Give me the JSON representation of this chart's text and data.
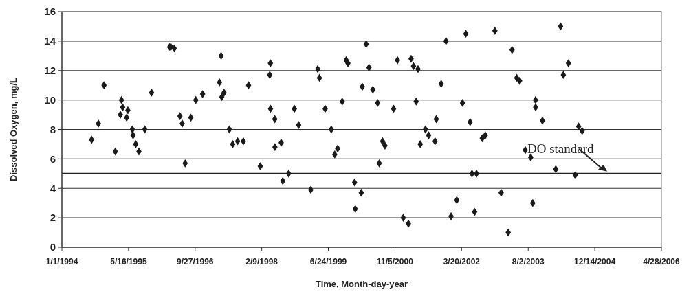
{
  "chart_data": {
    "type": "scatter",
    "xlabel": "Time, Month-day-year",
    "ylabel": "Dissolved Oxygen, mg/L",
    "xlim": [
      "1994-01-01",
      "2006-04-28"
    ],
    "xticks": [
      {
        "value": "1994-01-01",
        "label": "1/1/1994"
      },
      {
        "value": "1995-05-16",
        "label": "5/16/1995"
      },
      {
        "value": "1996-09-27",
        "label": "9/27/1996"
      },
      {
        "value": "1998-02-09",
        "label": "2/9/1998"
      },
      {
        "value": "1999-06-24",
        "label": "6/24/1999"
      },
      {
        "value": "2000-11-05",
        "label": "11/5/2000"
      },
      {
        "value": "2002-03-20",
        "label": "3/20/2002"
      },
      {
        "value": "2003-08-02",
        "label": "8/2/2003"
      },
      {
        "value": "2004-12-14",
        "label": "12/14/2004"
      },
      {
        "value": "2006-04-28",
        "label": "4/28/2006"
      }
    ],
    "ylim": [
      0,
      16
    ],
    "yticks": [
      0,
      2,
      4,
      6,
      8,
      10,
      12,
      14,
      16
    ],
    "grid": "y",
    "marker": "diamond",
    "ref_lines": [
      {
        "axis": "y",
        "value": 5,
        "label": "DO standard",
        "color": "#222222"
      }
    ],
    "series": [
      {
        "color": "#1a1a1a",
        "x": [
          "1994-08-12",
          "1994-10-02",
          "1994-11-13",
          "1995-02-06",
          "1995-03-24",
          "1995-04-02",
          "1995-05-11",
          "1995-03-16",
          "1995-05-02",
          "1995-06-14",
          "1995-06-19",
          "1995-07-09",
          "1995-08-02",
          "1995-09-15",
          "1995-11-05",
          "1996-03-20",
          "1996-03-29",
          "1996-04-23",
          "1996-06-05",
          "1996-06-22",
          "1996-07-14",
          "1996-08-26",
          "1996-10-02",
          "1996-11-22",
          "1997-03-29",
          "1997-04-10",
          "1997-04-15",
          "1997-05-02",
          "1997-06-11",
          "1997-07-06",
          "1997-08-12",
          "1997-09-24",
          "1997-11-02",
          "1998-01-29",
          "1998-04-15",
          "1998-04-10",
          "1998-04-16",
          "1998-05-18",
          "1998-05-19",
          "1998-07-05",
          "1998-07-17",
          "1998-08-30",
          "1998-10-12",
          "1998-11-13",
          "1999-02-12",
          "1999-04-05",
          "1999-04-18",
          "1999-05-31",
          "1999-07-16",
          "1999-08-11",
          "1999-09-02",
          "1999-10-06",
          "1999-11-05",
          "1999-11-18",
          "2000-01-07",
          "2000-01-12",
          "2000-02-26",
          "2000-03-05",
          "2000-04-03",
          "2000-04-24",
          "2000-05-23",
          "2000-06-28",
          "2000-07-10",
          "2000-08-04",
          "2000-08-22",
          "2000-10-26",
          "2000-11-24",
          "2001-01-06",
          "2001-02-14",
          "2001-03-06",
          "2001-03-24",
          "2001-04-27",
          "2001-04-13",
          "2001-05-14",
          "2001-06-22",
          "2001-07-16",
          "2001-09-02",
          "2001-09-11",
          "2001-10-18",
          "2001-11-23",
          "2001-12-31",
          "2002-02-12",
          "2002-03-27",
          "2002-04-21",
          "2002-05-23",
          "2002-06-26",
          "2002-06-06",
          "2002-07-10",
          "2002-08-22",
          "2002-09-14",
          "2002-11-25",
          "2003-01-11",
          "2003-03-05",
          "2003-04-03",
          "2003-05-08",
          "2003-05-30",
          "2003-07-11",
          "2003-08-21",
          "2003-09-05",
          "2003-09-26",
          "2003-09-27",
          "2003-11-17",
          "2004-02-25",
          "2004-04-01",
          "2004-04-22",
          "2004-05-30",
          "2004-07-20",
          "2004-08-15",
          "2004-09-10"
        ],
        "values": [
          7.3,
          8.4,
          11.0,
          6.5,
          10.0,
          9.5,
          9.3,
          9.0,
          8.8,
          8.0,
          7.6,
          7.0,
          6.5,
          8.0,
          10.5,
          13.6,
          13.6,
          13.5,
          8.9,
          8.4,
          5.7,
          8.8,
          10.0,
          10.4,
          11.2,
          13.0,
          10.2,
          10.5,
          8.0,
          7.0,
          7.2,
          7.2,
          11.0,
          5.5,
          12.5,
          11.7,
          9.4,
          8.7,
          6.8,
          7.1,
          4.5,
          5.0,
          9.4,
          8.3,
          3.9,
          12.1,
          11.5,
          9.4,
          8.0,
          6.3,
          6.7,
          9.9,
          12.7,
          12.5,
          4.4,
          2.6,
          3.7,
          10.9,
          13.8,
          12.2,
          10.7,
          9.8,
          5.7,
          7.2,
          6.9,
          9.4,
          12.7,
          2.0,
          1.6,
          12.8,
          12.3,
          12.1,
          9.9,
          7.0,
          8.0,
          7.6,
          7.2,
          8.7,
          11.1,
          14.0,
          2.1,
          3.2,
          9.8,
          14.5,
          8.5,
          2.4,
          5.0,
          5.0,
          7.4,
          7.6,
          14.7,
          3.7,
          1.0,
          13.4,
          11.5,
          11.3,
          6.6,
          6.1,
          3.0,
          10.0,
          9.5,
          8.6,
          5.3,
          15.0,
          11.7,
          12.5,
          4.9,
          8.2,
          7.9
        ]
      }
    ]
  }
}
